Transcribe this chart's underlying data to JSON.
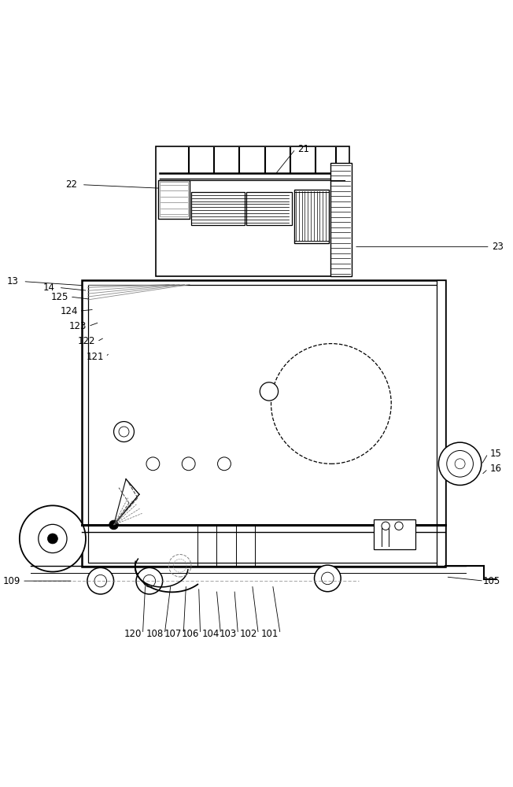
{
  "bg_color": "#ffffff",
  "line_color": "#000000",
  "labels_data": {
    "21": [
      0.59,
      0.02,
      0.535,
      0.07
    ],
    "22": [
      0.135,
      0.09,
      0.31,
      0.097
    ],
    "23": [
      0.972,
      0.212,
      0.69,
      0.212
    ],
    "13": [
      0.02,
      0.28,
      0.16,
      0.288
    ],
    "14": [
      0.09,
      0.292,
      0.167,
      0.298
    ],
    "125": [
      0.112,
      0.31,
      0.173,
      0.315
    ],
    "124": [
      0.13,
      0.338,
      0.18,
      0.335
    ],
    "123": [
      0.148,
      0.368,
      0.19,
      0.36
    ],
    "122": [
      0.165,
      0.398,
      0.2,
      0.39
    ],
    "121": [
      0.182,
      0.428,
      0.21,
      0.42
    ],
    "15": [
      0.968,
      0.618,
      0.94,
      0.64
    ],
    "16": [
      0.968,
      0.648,
      0.94,
      0.66
    ],
    "109": [
      0.018,
      0.868,
      0.138,
      0.868
    ],
    "105": [
      0.96,
      0.868,
      0.87,
      0.86
    ],
    "120": [
      0.255,
      0.972,
      0.28,
      0.875
    ],
    "108": [
      0.298,
      0.972,
      0.33,
      0.875
    ],
    "107": [
      0.335,
      0.972,
      0.36,
      0.875
    ],
    "106": [
      0.368,
      0.972,
      0.385,
      0.88
    ],
    "104": [
      0.408,
      0.972,
      0.42,
      0.885
    ],
    "103": [
      0.442,
      0.972,
      0.455,
      0.885
    ],
    "102": [
      0.482,
      0.972,
      0.49,
      0.875
    ],
    "101": [
      0.525,
      0.972,
      0.53,
      0.875
    ]
  }
}
